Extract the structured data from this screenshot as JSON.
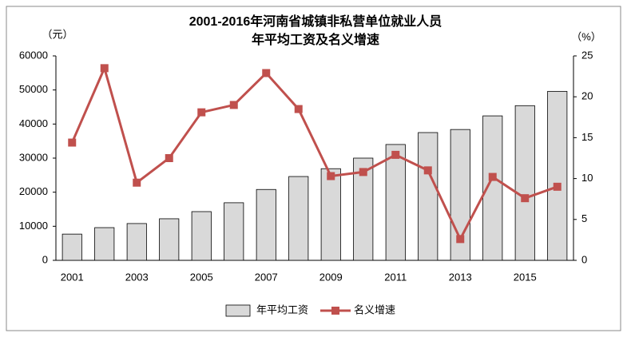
{
  "chart_data": {
    "type": "bar_line",
    "title": [
      "2001-2016年河南省城镇非私营单位就业人员",
      "年平均工资及名义增速"
    ],
    "y_label": "（元）",
    "y2_label": "（%）",
    "categories": [
      "2001",
      null,
      "2003",
      null,
      "2005",
      null,
      "2007",
      null,
      "2009",
      null,
      "2011",
      null,
      "2013",
      null,
      "2015",
      null
    ],
    "series": [
      {
        "name": "年平均工资",
        "type": "bar",
        "color": "#d9d9d9",
        "values": [
          7700,
          9600,
          10800,
          12200,
          14300,
          16900,
          20800,
          24600,
          26900,
          30000,
          34000,
          37500,
          38400,
          42400,
          45400,
          49600
        ]
      },
      {
        "name": "名义增速",
        "type": "line",
        "axis": "y2",
        "color": "#c0504d",
        "values": [
          14.4,
          23.5,
          9.5,
          12.5,
          18.1,
          19.0,
          22.9,
          18.5,
          10.3,
          10.8,
          12.9,
          11.0,
          2.6,
          10.2,
          7.6,
          9.0
        ]
      }
    ],
    "ylim": [
      0,
      60000
    ],
    "yticks": [
      0,
      10000,
      20000,
      30000,
      40000,
      50000,
      60000
    ],
    "y2lim": [
      0,
      25
    ],
    "y2ticks": [
      0,
      5,
      10,
      15,
      20,
      25
    ],
    "legend": "bottom",
    "grid": false
  }
}
